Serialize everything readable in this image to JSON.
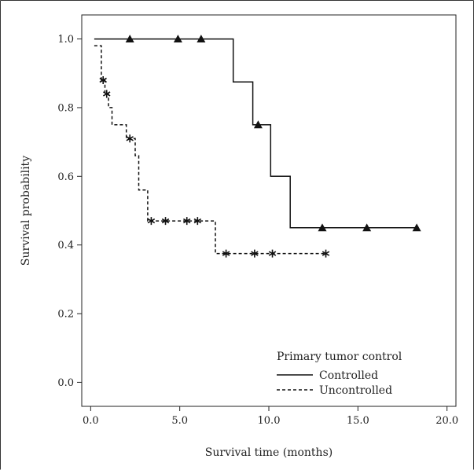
{
  "chart_data": {
    "type": "line",
    "subtype": "kaplan-meier step",
    "xlabel": "Survival time (months)",
    "ylabel": "Survival probability",
    "xlim": [
      -0.5,
      20.5
    ],
    "ylim": [
      -0.07,
      1.07
    ],
    "x_ticks": [
      0,
      5,
      10,
      15,
      20
    ],
    "x_tick_labels": [
      "0.0",
      "5.0",
      "10.0",
      "15.0",
      "20.0"
    ],
    "y_ticks": [
      0,
      0.2,
      0.4,
      0.6,
      0.8,
      1.0
    ],
    "y_tick_labels": [
      "0.0",
      "0.2",
      "0.4",
      "0.6",
      "0.8",
      "1.0"
    ],
    "grid": false,
    "legend": {
      "title": "Primary tumor control",
      "position": "bottom-right"
    },
    "series": [
      {
        "name": "Controlled",
        "line_style": "solid",
        "censor_marker": "triangle",
        "step_points": [
          [
            0.2,
            1.0
          ],
          [
            8.0,
            1.0
          ],
          [
            8.0,
            0.875
          ],
          [
            9.1,
            0.875
          ],
          [
            9.1,
            0.75
          ],
          [
            10.1,
            0.75
          ],
          [
            10.1,
            0.6
          ],
          [
            11.2,
            0.6
          ],
          [
            11.2,
            0.45
          ],
          [
            18.3,
            0.45
          ]
        ],
        "censored": [
          [
            2.2,
            1.0
          ],
          [
            4.9,
            1.0
          ],
          [
            6.2,
            1.0
          ],
          [
            9.4,
            0.75
          ],
          [
            13.0,
            0.45
          ],
          [
            15.5,
            0.45
          ],
          [
            18.3,
            0.45
          ]
        ]
      },
      {
        "name": "Uncontrolled",
        "line_style": "dashed",
        "censor_marker": "asterisk",
        "step_points": [
          [
            0.2,
            0.98
          ],
          [
            0.6,
            0.98
          ],
          [
            0.6,
            0.88
          ],
          [
            0.8,
            0.88
          ],
          [
            0.8,
            0.84
          ],
          [
            1.0,
            0.84
          ],
          [
            1.0,
            0.8
          ],
          [
            1.2,
            0.8
          ],
          [
            1.2,
            0.75
          ],
          [
            2.0,
            0.75
          ],
          [
            2.0,
            0.71
          ],
          [
            2.5,
            0.71
          ],
          [
            2.5,
            0.66
          ],
          [
            2.7,
            0.66
          ],
          [
            2.7,
            0.56
          ],
          [
            3.2,
            0.56
          ],
          [
            3.2,
            0.47
          ],
          [
            7.0,
            0.47
          ],
          [
            7.0,
            0.375
          ],
          [
            13.2,
            0.375
          ]
        ],
        "censored": [
          [
            0.7,
            0.88
          ],
          [
            0.9,
            0.84
          ],
          [
            2.2,
            0.71
          ],
          [
            3.4,
            0.47
          ],
          [
            4.2,
            0.47
          ],
          [
            5.4,
            0.47
          ],
          [
            6.0,
            0.47
          ],
          [
            7.6,
            0.375
          ],
          [
            9.2,
            0.375
          ],
          [
            10.2,
            0.375
          ],
          [
            13.2,
            0.375
          ]
        ]
      }
    ]
  }
}
